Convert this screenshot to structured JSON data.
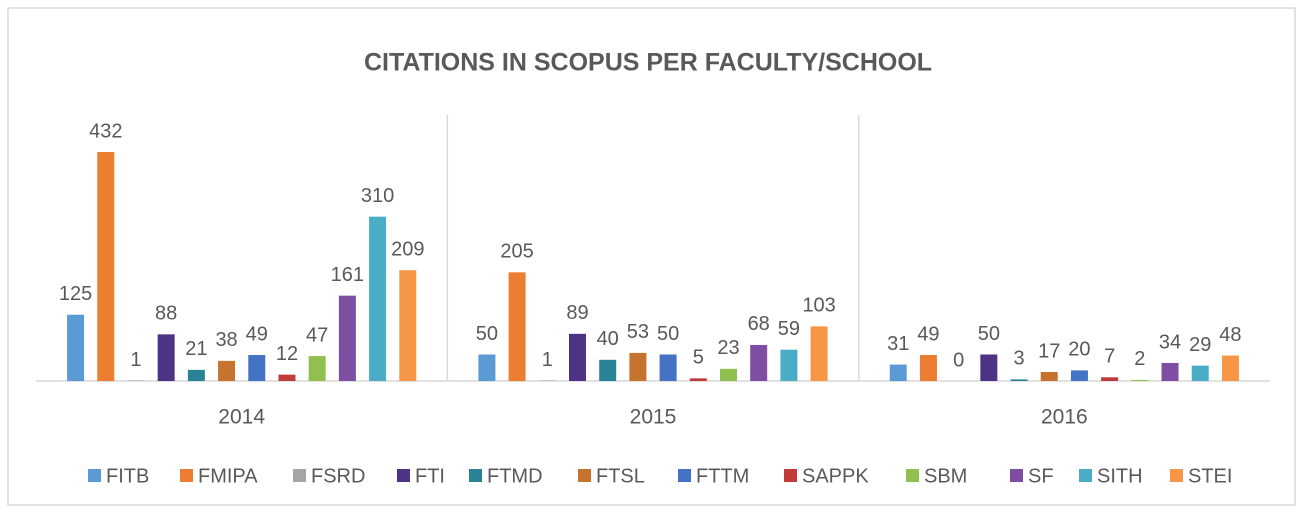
{
  "chart_data": {
    "type": "bar",
    "title": "CITATIONS IN SCOPUS PER FACULTY/SCHOOL",
    "categories": [
      "2014",
      "2015",
      "2016"
    ],
    "series": [
      {
        "name": "FITB",
        "color": "#5b9bd5",
        "values": [
          125,
          50,
          31
        ]
      },
      {
        "name": "FMIPA",
        "color": "#ed7d31",
        "values": [
          432,
          205,
          49
        ]
      },
      {
        "name": "FSRD",
        "color": "#a5a5a5",
        "values": [
          1,
          1,
          0
        ]
      },
      {
        "name": "FTI",
        "color": "#4e3384",
        "values": [
          88,
          89,
          50
        ]
      },
      {
        "name": "FTMD",
        "color": "#2a8394",
        "values": [
          21,
          40,
          3
        ]
      },
      {
        "name": "FTSL",
        "color": "#c5732f",
        "values": [
          38,
          53,
          17
        ]
      },
      {
        "name": "FTTM",
        "color": "#4472c4",
        "values": [
          49,
          50,
          20
        ]
      },
      {
        "name": "SAPPK",
        "color": "#c23b3b",
        "values": [
          12,
          5,
          7
        ]
      },
      {
        "name": "SBM",
        "color": "#92c050",
        "values": [
          47,
          23,
          2
        ]
      },
      {
        "name": "SF",
        "color": "#7e4ea3",
        "values": [
          161,
          68,
          34
        ]
      },
      {
        "name": "SITH",
        "color": "#4bacc6",
        "values": [
          310,
          59,
          29
        ]
      },
      {
        "name": "STEI",
        "color": "#f79646",
        "values": [
          209,
          103,
          48
        ]
      }
    ],
    "legend": "bottom"
  }
}
